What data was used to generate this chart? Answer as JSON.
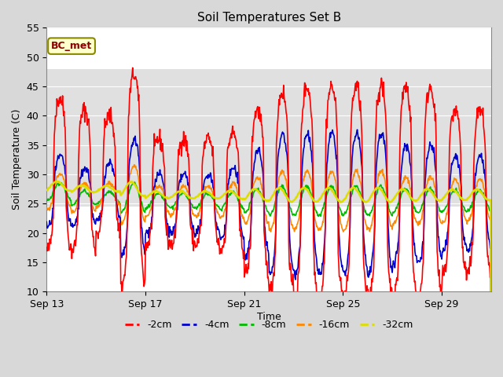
{
  "title": "Soil Temperatures Set B",
  "xlabel": "Time",
  "ylabel": "Soil Temperature (C)",
  "ylim": [
    10,
    55
  ],
  "x_ticks_days": [
    0,
    4,
    8,
    12,
    16
  ],
  "x_tick_labels": [
    "Sep 13",
    "Sep 17",
    "Sep 21",
    "Sep 25",
    "Sep 29"
  ],
  "yticks": [
    10,
    15,
    20,
    25,
    30,
    35,
    40,
    45,
    50,
    55
  ],
  "shaded_band_ymin": 24.5,
  "shaded_band_ymax": 48.0,
  "bg_color": "#d8d8d8",
  "plot_bg_color": "#ffffff",
  "band_color": "#e0e0e0",
  "annotation_text": "BC_met",
  "legend_labels": [
    "-2cm",
    "-4cm",
    "-8cm",
    "-16cm",
    "-32cm"
  ],
  "line_colors": [
    "#ff0000",
    "#0000cc",
    "#00bb00",
    "#ff8800",
    "#dddd00"
  ],
  "line_widths": [
    1.2,
    1.2,
    1.2,
    1.2,
    1.8
  ],
  "days": 18,
  "pts_per_day": 48,
  "seed": 42,
  "series_params": {
    "2cm": {
      "means": [
        30,
        29,
        30,
        29,
        27,
        27,
        27,
        27,
        27,
        27,
        27,
        27,
        27,
        27,
        27,
        27,
        27,
        27
      ],
      "amps": [
        13,
        12,
        10,
        18,
        9,
        9,
        9,
        10,
        14,
        17,
        18,
        18,
        18,
        18,
        18,
        18,
        14,
        14
      ],
      "phase": -1.8,
      "lag": 0.0,
      "noise": 0.8,
      "sharpness": 3
    },
    "4cm": {
      "means": [
        27,
        26,
        27,
        26,
        25,
        25,
        25,
        25,
        25,
        25,
        25,
        25,
        25,
        25,
        25,
        25,
        25,
        25
      ],
      "amps": [
        6,
        5,
        5,
        10,
        5,
        5,
        5,
        6,
        9,
        12,
        12,
        12,
        12,
        12,
        10,
        10,
        8,
        8
      ],
      "phase": -1.6,
      "lag": 0.05,
      "noise": 0.4,
      "sharpness": 2
    },
    "8cm": {
      "means": [
        27,
        26,
        26,
        26,
        25.5,
        25.5,
        25.5,
        25.5,
        25.5,
        25.5,
        25.5,
        25.5,
        25.5,
        25.5,
        25.5,
        25.5,
        25.5,
        25.5
      ],
      "amps": [
        1.5,
        1.2,
        1.0,
        2.5,
        1.2,
        1.2,
        1.2,
        1.5,
        2.0,
        2.5,
        2.5,
        2.5,
        2.5,
        2.5,
        2.0,
        2.0,
        1.8,
        1.8
      ],
      "phase": -0.8,
      "lag": 0.15,
      "noise": 0.15,
      "sharpness": 1
    },
    "16cm": {
      "means": [
        27,
        26,
        26.5,
        26.5,
        25.5,
        25.5,
        25.5,
        25.5,
        25.5,
        25.5,
        25.5,
        25.5,
        25.5,
        25.5,
        25.5,
        25.5,
        25.5,
        25.5
      ],
      "amps": [
        3.0,
        2.5,
        2.0,
        5.0,
        2.5,
        2.5,
        2.5,
        3.0,
        4.0,
        5.0,
        5.0,
        5.0,
        5.0,
        5.0,
        4.0,
        4.0,
        3.5,
        3.5
      ],
      "phase": -1.2,
      "lag": 0.1,
      "noise": 0.2,
      "sharpness": 1.5
    },
    "32cm": {
      "means": [
        28,
        27.5,
        27.5,
        27.5,
        26.5,
        26.5,
        26.5,
        26.5,
        26.5,
        26.5,
        26.5,
        26.5,
        26.5,
        26.5,
        26.5,
        26.5,
        26.5,
        26.5
      ],
      "amps": [
        0.8,
        0.6,
        0.5,
        1.2,
        0.6,
        0.6,
        0.6,
        0.7,
        1.0,
        1.2,
        1.2,
        1.2,
        1.2,
        1.2,
        1.0,
        1.0,
        0.9,
        0.9
      ],
      "phase": 0.2,
      "lag": 0.2,
      "noise": 0.05,
      "sharpness": 1
    }
  }
}
